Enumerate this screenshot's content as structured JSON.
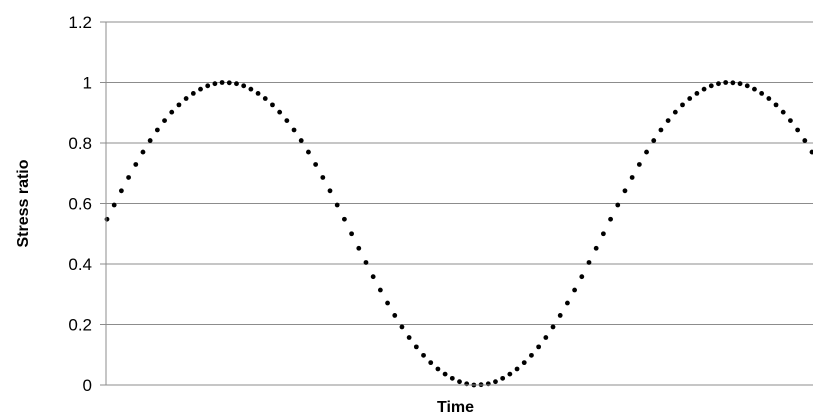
{
  "chart_data": {
    "type": "scatter",
    "title": "",
    "xlabel": "Time",
    "ylabel": "Stress ratio",
    "ylim": [
      0,
      1.2
    ],
    "y_ticks": [
      "0",
      "0.2",
      "0.4",
      "0.6",
      "0.8",
      "1",
      "1.2"
    ],
    "grid": "horizontal",
    "legend": "none",
    "marker_color": "#000000",
    "series": [
      {
        "values": [
          0.548,
          0.595,
          0.642,
          0.686,
          0.729,
          0.77,
          0.808,
          0.843,
          0.874,
          0.902,
          0.926,
          0.947,
          0.964,
          0.978,
          0.989,
          0.996,
          1.0,
          0.999,
          0.996,
          0.989,
          0.978,
          0.964,
          0.947,
          0.926,
          0.902,
          0.874,
          0.843,
          0.808,
          0.77,
          0.729,
          0.686,
          0.642,
          0.595,
          0.548,
          0.5,
          0.452,
          0.405,
          0.358,
          0.314,
          0.271,
          0.23,
          0.192,
          0.157,
          0.126,
          0.098,
          0.074,
          0.053,
          0.036,
          0.022,
          0.011,
          0.004,
          0.0,
          0.001,
          0.004,
          0.011,
          0.022,
          0.036,
          0.053,
          0.074,
          0.098,
          0.126,
          0.157,
          0.192,
          0.23,
          0.271,
          0.314,
          0.358,
          0.405,
          0.452,
          0.5,
          0.548,
          0.595,
          0.642,
          0.686,
          0.729,
          0.77,
          0.808,
          0.843,
          0.874,
          0.902,
          0.926,
          0.947,
          0.964,
          0.978,
          0.989,
          0.996,
          1.0,
          0.999,
          0.996,
          0.989,
          0.978,
          0.964,
          0.947,
          0.926,
          0.902,
          0.874,
          0.843,
          0.808,
          0.77
        ]
      }
    ]
  }
}
